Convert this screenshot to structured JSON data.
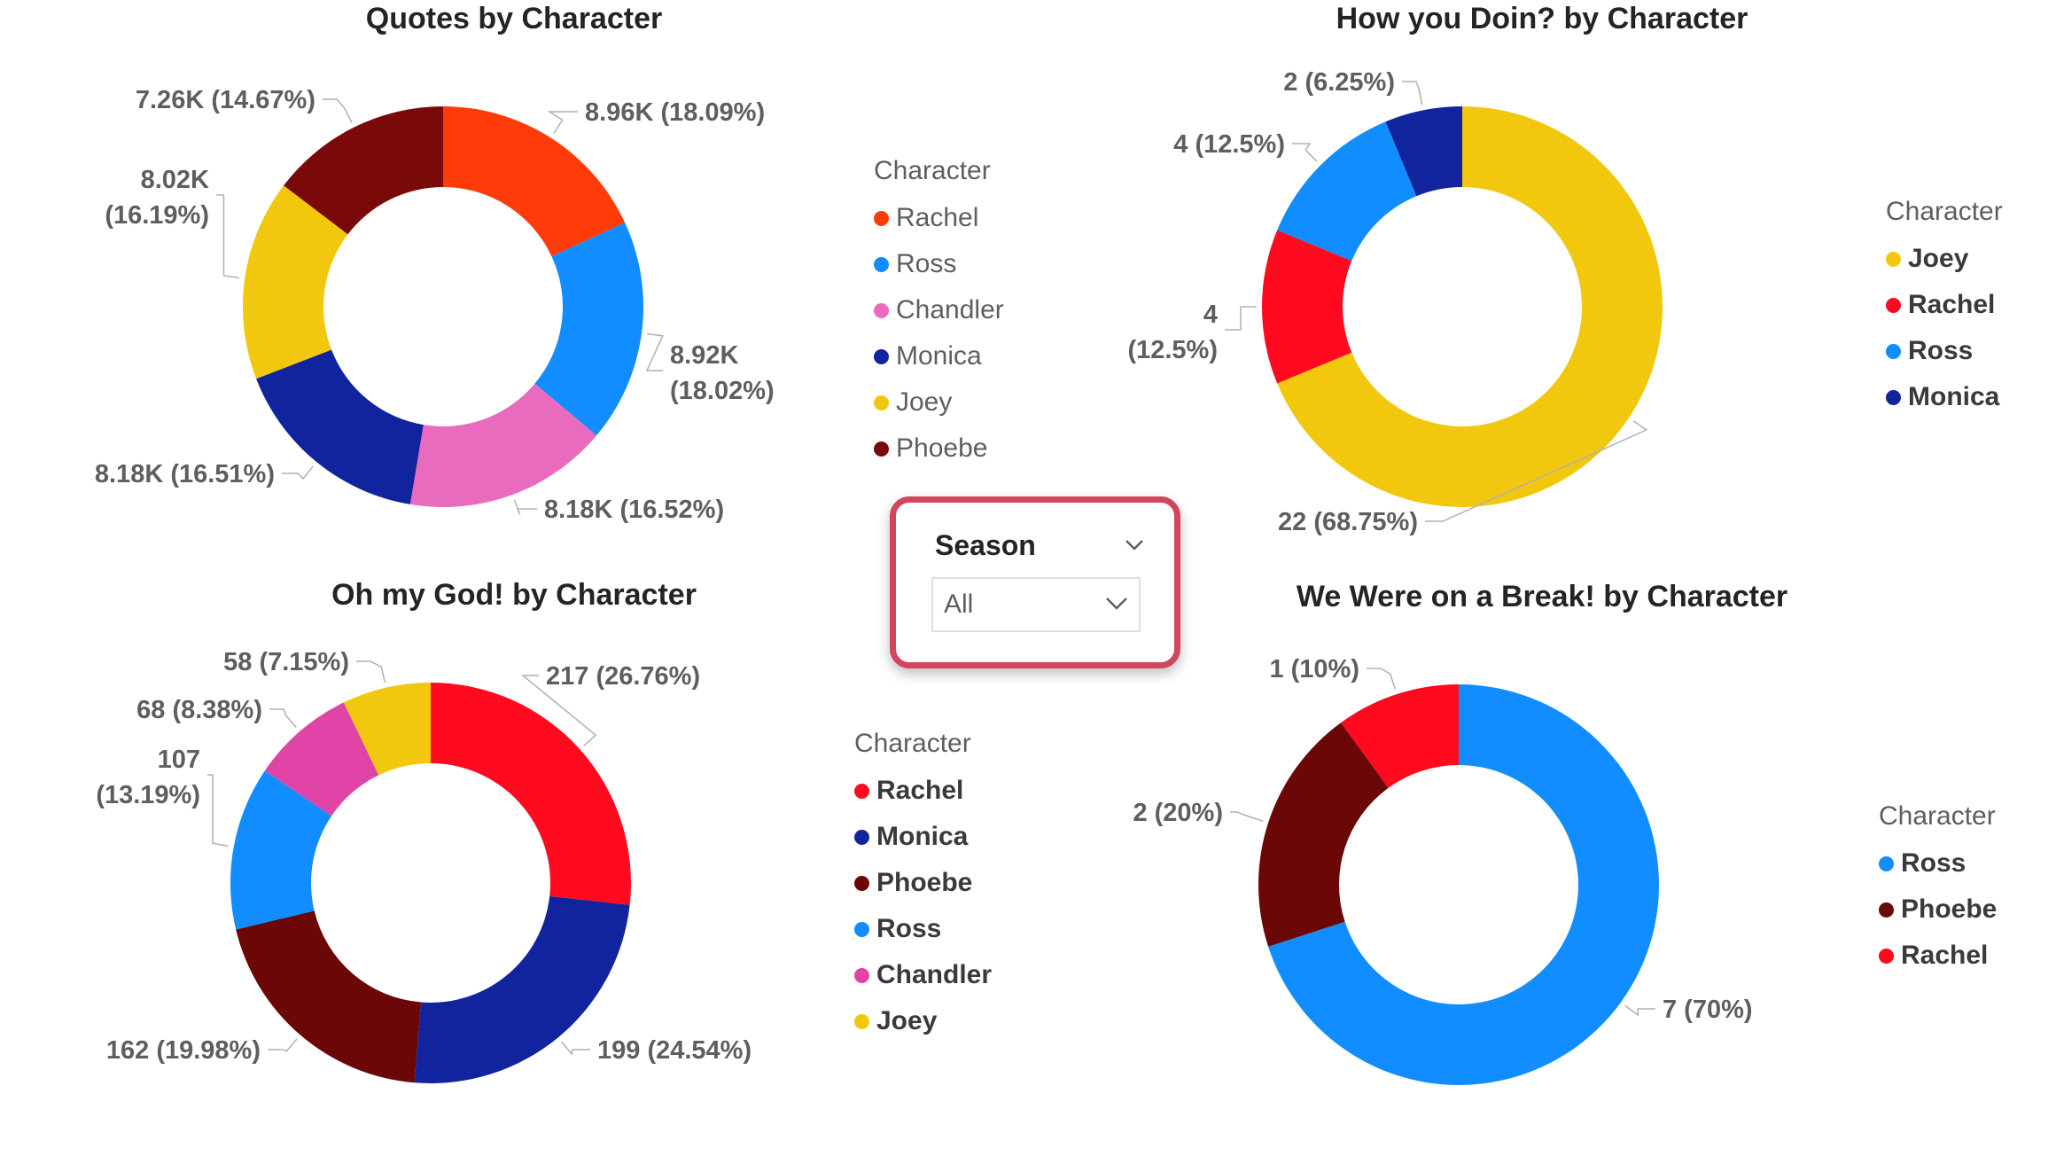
{
  "slicer": {
    "title": "Season",
    "value": "All"
  },
  "chart_data": [
    {
      "id": "quotes",
      "type": "pie",
      "title": "Quotes by Character",
      "legend_title": "Character",
      "legend_position": "right",
      "legend_weight": "normal",
      "slices": [
        {
          "label": "Rachel",
          "value": 8960,
          "text": "8.96K (18.09%)",
          "color": "#ff3b0a"
        },
        {
          "label": "Ross",
          "value": 8920,
          "text": "8.92K\n(18.02%)",
          "color": "#118dff"
        },
        {
          "label": "Chandler",
          "value": 8180,
          "text": "8.18K (16.52%)",
          "color": "#e66c37"
        },
        {
          "label": "Monica",
          "value": 8180,
          "text": "8.18K (16.51%)",
          "color": "#12239e"
        },
        {
          "label": "Joey",
          "value": 8020,
          "text": "8.02K\n(16.19%)",
          "color": "#f2c80f"
        },
        {
          "label": "Phoebe",
          "value": 7260,
          "text": "7.26K (14.67%)",
          "color": "#750985"
        }
      ]
    },
    {
      "id": "doin",
      "type": "pie",
      "title": "How you Doin? by Character",
      "legend_title": "Character",
      "legend_position": "right",
      "legend_weight": "bold",
      "slices": [
        {
          "label": "Joey",
          "value": 22,
          "text": "22 (68.75%)",
          "color": "#f2c80f"
        },
        {
          "label": "Rachel",
          "value": 4,
          "text": "4\n(12.5%)",
          "color": "#ff0a1e"
        },
        {
          "label": "Ross",
          "value": 4,
          "text": "4 (12.5%)",
          "color": "#118dff"
        },
        {
          "label": "Monica",
          "value": 2,
          "text": "2 (6.25%)",
          "color": "#12239e"
        }
      ]
    },
    {
      "id": "omg",
      "type": "pie",
      "title": "Oh my God! by Character",
      "legend_title": "Character",
      "legend_position": "right",
      "legend_weight": "bold",
      "slices": [
        {
          "label": "Rachel",
          "value": 217,
          "text": "217 (26.76%)",
          "color": "#ff0a1e"
        },
        {
          "label": "Monica",
          "value": 199,
          "text": "199 (24.54%)",
          "color": "#12239e"
        },
        {
          "label": "Phoebe",
          "value": 162,
          "text": "162 (19.98%)",
          "color": "#6b0707"
        },
        {
          "label": "Ross",
          "value": 107,
          "text": "107\n(13.19%)",
          "color": "#118dff"
        },
        {
          "label": "Chandler",
          "value": 68,
          "text": "68 (8.38%)",
          "color": "#e044a7"
        },
        {
          "label": "Joey",
          "value": 58,
          "text": "58 (7.15%)",
          "color": "#f2c80f"
        }
      ]
    },
    {
      "id": "break",
      "type": "pie",
      "title": "We Were on a Break! by Character",
      "legend_title": "Character",
      "legend_position": "right",
      "legend_weight": "bold",
      "slices": [
        {
          "label": "Ross",
          "value": 7,
          "text": "7 (70%)",
          "color": "#118dff"
        },
        {
          "label": "Phoebe",
          "value": 2,
          "text": "2 (20%)",
          "color": "#6b0707"
        },
        {
          "label": "Rachel",
          "value": 1,
          "text": "1 (10%)",
          "color": "#ff0a1e"
        }
      ]
    }
  ]
}
